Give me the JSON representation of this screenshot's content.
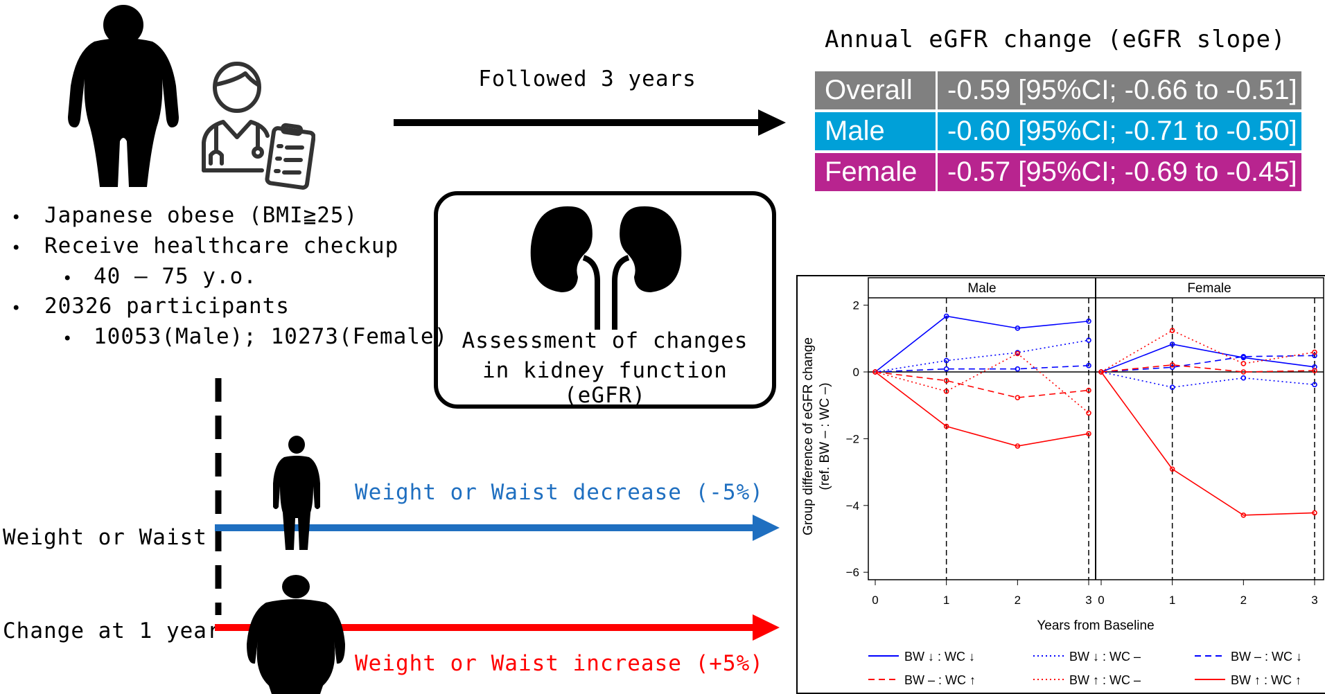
{
  "left": {
    "bullets": [
      {
        "text": "Japanese obese (BMI≧25)",
        "level": 1
      },
      {
        "text": "Receive healthcare checkup",
        "level": 1
      },
      {
        "text": "40 – 75 y.o.",
        "level": 2
      },
      {
        "text": "20326 participants",
        "level": 1
      },
      {
        "text": "10053(Male); 10273(Female)",
        "level": 2
      }
    ],
    "bullet_glyph": "•",
    "change_label_line1": "Weight or Waist",
    "change_label_line2": "Change at 1 year",
    "decrease_label": "Weight or Waist decrease (-5%)",
    "increase_label": "Weight or Waist increase (+5%)",
    "colors": {
      "decrease": "#1f6fc0",
      "increase": "#ff0000"
    }
  },
  "followup": {
    "label": "Followed 3 years"
  },
  "assessment": {
    "line1": "Assessment of changes",
    "line2": "in kidney function (eGFR)"
  },
  "slope_table": {
    "title": "Annual eGFR change (eGFR slope)",
    "rows": [
      {
        "label": "Overall",
        "value": "-0.59 [95%CI; -0.66 to -0.51]",
        "color": "#808080"
      },
      {
        "label": "Male",
        "value": "-0.60 [95%CI; -0.71 to -0.50]",
        "color": "#00a0d8"
      },
      {
        "label": "Female",
        "value": "-0.57 [95%CI; -0.69 to -0.45]",
        "color": "#b8248f"
      }
    ]
  },
  "chart_data": {
    "type": "line",
    "panels": [
      "Male",
      "Female"
    ],
    "x": [
      0,
      1,
      2,
      3
    ],
    "xticks": [
      "0",
      "1",
      "2",
      "3"
    ],
    "yticks": [
      "2",
      "0",
      "−2",
      "−4",
      "−6"
    ],
    "ytick_values": [
      2,
      0,
      -2,
      -4,
      -6
    ],
    "ylim": [
      -6.3,
      2.3
    ],
    "xlabel": "Years from Baseline",
    "ylabel_line1": "Group difference of eGFR change",
    "ylabel_line2": "(ref. BW – : WC –)",
    "reference_line": 0,
    "vertical_dashed_at": [
      1,
      3
    ],
    "series": [
      {
        "name": "BW ↓ : WC ↓",
        "color": "#0000ff",
        "dash": "solid",
        "Male": [
          0,
          1.67,
          1.31,
          1.52
        ],
        "Female": [
          0,
          0.83,
          0.43,
          0.15
        ]
      },
      {
        "name": "BW ↓ : WC –",
        "color": "#0000ff",
        "dash": "dotted",
        "Male": [
          0,
          0.34,
          0.58,
          0.95
        ],
        "Female": [
          0,
          -0.46,
          -0.18,
          -0.38
        ]
      },
      {
        "name": "BW – : WC ↓",
        "color": "#0000ff",
        "dash": "dashed",
        "Male": [
          0,
          0.09,
          0.09,
          0.19
        ],
        "Female": [
          0,
          0.14,
          0.46,
          0.49
        ]
      },
      {
        "name": "BW – : WC ↑",
        "color": "#ff0000",
        "dash": "dashed",
        "Male": [
          0,
          -0.26,
          -0.77,
          -0.55
        ],
        "Female": [
          0,
          0.21,
          0.0,
          0.04
        ]
      },
      {
        "name": "BW ↑ : WC –",
        "color": "#ff0000",
        "dash": "dotted",
        "Male": [
          0,
          -0.58,
          0.55,
          -1.23
        ],
        "Female": [
          0,
          1.24,
          0.25,
          0.59
        ]
      },
      {
        "name": "BW ↑ : WC ↑",
        "color": "#ff0000",
        "dash": "solid",
        "Male": [
          0,
          -1.63,
          -2.22,
          -1.85
        ],
        "Female": [
          0,
          -2.91,
          -4.29,
          -4.22
        ]
      }
    ],
    "legend_position": "bottom"
  }
}
